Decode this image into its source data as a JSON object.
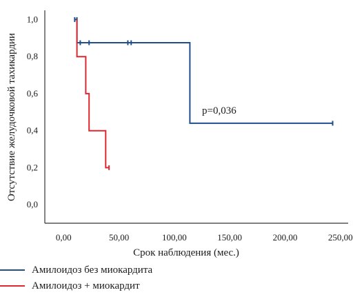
{
  "chart_data": {
    "type": "line",
    "step": true,
    "title": "",
    "xlabel": "Срок наблюдения (мес.)",
    "ylabel": "Отсутствие желудочковой тахикардии",
    "xlim": [
      -17,
      257
    ],
    "ylim": [
      -0.1,
      1.05
    ],
    "xticks": [
      "0,00",
      "50,00",
      "100,00",
      "150,00",
      "200,00",
      "250,00"
    ],
    "xtick_values": [
      0,
      50,
      100,
      150,
      200,
      250
    ],
    "yticks": [
      "0,0",
      "0,2",
      "0,4",
      "0,6",
      "0,8",
      "1,0"
    ],
    "ytick_values": [
      0,
      0.2,
      0.4,
      0.6,
      0.8,
      1.0
    ],
    "grid": false,
    "legend_position": "bottom-left",
    "annotation": "p=0,036",
    "series": [
      {
        "name": "Амилоидоз без миокардита",
        "color": "#1f4e8c",
        "steps": [
          [
            10,
            1.0
          ],
          [
            12,
            1.0
          ],
          [
            12,
            0.875
          ],
          [
            114,
            0.875
          ],
          [
            114,
            0.44
          ],
          [
            243,
            0.44
          ]
        ],
        "censored": [
          [
            10,
            1.0
          ],
          [
            12,
            1.0
          ],
          [
            15,
            0.875
          ],
          [
            23,
            0.875
          ],
          [
            58,
            0.875
          ],
          [
            61,
            0.875
          ],
          [
            243,
            0.44
          ]
        ]
      },
      {
        "name": "Амилоидоз + миокардит",
        "color": "#e0262e",
        "steps": [
          [
            12,
            1.0
          ],
          [
            12,
            0.8
          ],
          [
            20,
            0.8
          ],
          [
            20,
            0.6
          ],
          [
            23,
            0.6
          ],
          [
            23,
            0.4
          ],
          [
            38,
            0.4
          ],
          [
            38,
            0.2
          ],
          [
            41,
            0.2
          ]
        ],
        "censored": [
          [
            41,
            0.2
          ]
        ]
      }
    ]
  }
}
